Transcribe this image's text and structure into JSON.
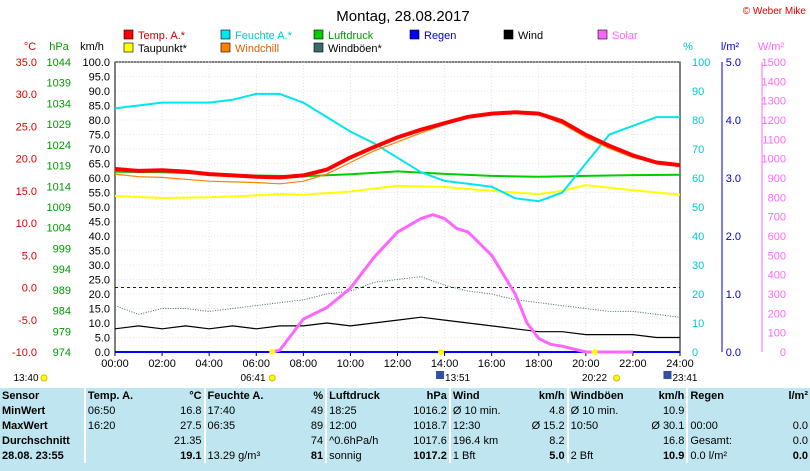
{
  "header": {
    "title": "Montag, 28.08.2017",
    "credit": "© Weber Mike"
  },
  "legend": [
    {
      "label": "Temp. A.*",
      "color": "#ff0000"
    },
    {
      "label": "Feuchte A.*",
      "color": "#00e5ee"
    },
    {
      "label": "Luftdruck",
      "color": "#00cc00"
    },
    {
      "label": "Regen",
      "color": "#0000ff"
    },
    {
      "label": "Wind",
      "color": "#000000"
    },
    {
      "label": "Solar",
      "color": "#ff66ff"
    },
    {
      "label": "Taupunkt*",
      "color": "#ffff00"
    },
    {
      "label": "Windchill",
      "color": "#ff8000"
    },
    {
      "label": "Windböen*",
      "color": "#3a6a6a"
    }
  ],
  "axis_units": {
    "temp": "°C",
    "pressure": "hPa",
    "wind": "km/h",
    "humidity": "%",
    "rain": "l/m²",
    "solar": "W/m²"
  },
  "sun_events": {
    "sunrise_left": "13:40",
    "sunrise": "06:41",
    "noon": "13:51",
    "sunset": "20:22",
    "moon": "23:41"
  },
  "chart_data": {
    "type": "line",
    "title": "Montag, 28.08.2017",
    "x_ticks": [
      "00:00",
      "02:00",
      "04:00",
      "06:00",
      "08:00",
      "10:00",
      "12:00",
      "14:00",
      "16:00",
      "18:00",
      "20:00",
      "22:00",
      "24:00"
    ],
    "axes": {
      "temp": {
        "range": [
          -10,
          35
        ],
        "ticks": [
          "35.0",
          "30.0",
          "25.0",
          "20.0",
          "15.0",
          "10.0",
          "5.0",
          "0.0",
          "-5.0",
          "-10.0"
        ]
      },
      "pressure": {
        "range": [
          974,
          1044
        ],
        "ticks": [
          "1044",
          "1039",
          "1034",
          "1029",
          "1024",
          "1019",
          "1014",
          "1009",
          "1004",
          "999",
          "994",
          "989",
          "984",
          "979",
          "974"
        ]
      },
      "wind": {
        "range": [
          0,
          100
        ],
        "ticks": [
          "100.0",
          "95.0",
          "90.0",
          "85.0",
          "80.0",
          "75.0",
          "70.0",
          "65.0",
          "60.0",
          "55.0",
          "50.0",
          "45.0",
          "40.0",
          "35.0",
          "30.0",
          "25.0",
          "20.0",
          "15.0",
          "10.0",
          "5.0",
          "0.0"
        ]
      },
      "humidity": {
        "range": [
          0,
          100
        ],
        "ticks": [
          "100",
          "90",
          "80",
          "70",
          "60",
          "50",
          "40",
          "30",
          "20",
          "10",
          "0"
        ]
      },
      "rain": {
        "range": [
          0,
          5
        ],
        "ticks": [
          "5.0",
          "4.0",
          "3.0",
          "2.0",
          "1.0",
          "0.0"
        ]
      },
      "solar": {
        "range": [
          0,
          1500
        ],
        "ticks": [
          "1500",
          "1400",
          "1300",
          "1200",
          "1100",
          "1000",
          "900",
          "800",
          "700",
          "600",
          "500",
          "400",
          "300",
          "200",
          "100",
          "0"
        ]
      }
    },
    "series": [
      {
        "name": "Temp. A.*",
        "axis": "temp",
        "color": "#ff0000",
        "x": [
          0,
          1,
          2,
          3,
          4,
          5,
          6,
          7,
          8,
          9,
          10,
          11,
          12,
          13,
          14,
          15,
          16,
          17,
          18,
          19,
          20,
          21,
          22,
          23,
          24
        ],
        "y": [
          18.4,
          18.1,
          18.2,
          18.0,
          17.6,
          17.4,
          17.2,
          17.1,
          17.4,
          18.3,
          20.2,
          21.8,
          23.3,
          24.5,
          25.5,
          26.5,
          27.0,
          27.2,
          27.0,
          25.8,
          23.7,
          22.0,
          20.5,
          19.4,
          19.0
        ]
      },
      {
        "name": "Windchill",
        "axis": "temp",
        "color": "#ff8000",
        "x": [
          0,
          1,
          2,
          3,
          4,
          5,
          6,
          7,
          8,
          9,
          10,
          11,
          12,
          13,
          14,
          15,
          16,
          17,
          18,
          19,
          20,
          21,
          22,
          23,
          24
        ],
        "y": [
          17.6,
          17.2,
          17.1,
          16.8,
          16.5,
          16.4,
          16.3,
          16.1,
          16.5,
          17.6,
          19.4,
          21.2,
          22.6,
          24.0,
          25.3,
          26.4,
          27.0,
          27.2,
          26.9,
          25.4,
          23.3,
          21.6,
          20.2,
          19.3,
          19.0
        ]
      },
      {
        "name": "Feuchte A.*",
        "axis": "humidity",
        "color": "#00e5ee",
        "x": [
          0,
          1,
          2,
          3,
          4,
          5,
          6,
          7,
          8,
          9,
          10,
          11,
          12,
          13,
          14,
          15,
          16,
          17,
          18,
          19,
          20,
          21,
          22,
          23,
          24
        ],
        "y": [
          84,
          85,
          86,
          86,
          86,
          87,
          89,
          89,
          86,
          81,
          76,
          72,
          67,
          62,
          59,
          58,
          57,
          53,
          52,
          55,
          65,
          75,
          78,
          81,
          81
        ]
      },
      {
        "name": "Luftdruck",
        "axis": "pressure",
        "color": "#00cc00",
        "x": [
          0,
          2,
          4,
          6,
          8,
          10,
          12,
          14,
          16,
          18,
          20,
          22,
          24
        ],
        "y": [
          1017.5,
          1017.4,
          1017.0,
          1016.6,
          1016.4,
          1016.9,
          1017.6,
          1017.0,
          1016.5,
          1016.3,
          1016.5,
          1016.7,
          1016.8
        ]
      },
      {
        "name": "Taupunkt*",
        "axis": "temp",
        "color": "#ffff00",
        "x": [
          0,
          2,
          4,
          6,
          7,
          8,
          10,
          12,
          14,
          16,
          18,
          19,
          20,
          22,
          24
        ],
        "y": [
          14.2,
          13.9,
          14.0,
          14.3,
          14.5,
          14.4,
          14.9,
          15.8,
          15.6,
          15.0,
          14.5,
          15.0,
          15.9,
          15.1,
          14.4
        ]
      },
      {
        "name": "Wind",
        "axis": "wind",
        "color": "#000000",
        "x": [
          0,
          1,
          2,
          3,
          4,
          5,
          6,
          7,
          8,
          9,
          10,
          11,
          12,
          13,
          14,
          15,
          16,
          17,
          18,
          19,
          20,
          21,
          22,
          23,
          24
        ],
        "y": [
          8,
          9,
          8,
          9,
          8,
          9,
          8,
          9,
          9,
          10,
          9,
          10,
          11,
          12,
          11,
          10,
          9,
          8,
          7,
          7,
          6,
          6,
          6,
          5,
          5
        ]
      },
      {
        "name": "Windböen*",
        "axis": "wind",
        "color": "#3a6a6a",
        "x": [
          0,
          1,
          2,
          3,
          4,
          5,
          6,
          7,
          8,
          9,
          10,
          11,
          12,
          13,
          14,
          15,
          16,
          17,
          18,
          19,
          20,
          21,
          22,
          23,
          24
        ],
        "y": [
          16,
          13,
          15,
          15,
          14,
          15,
          16,
          17,
          18,
          20,
          21,
          24,
          25,
          26,
          23,
          21,
          20,
          18,
          17,
          16,
          15,
          14,
          14,
          13,
          12
        ]
      },
      {
        "name": "Solar",
        "axis": "solar",
        "color": "#ff66ff",
        "x": [
          6.7,
          7,
          8,
          9,
          10,
          11,
          12,
          13,
          13.5,
          14,
          14.5,
          15,
          16,
          17,
          17.5,
          18,
          18.5,
          19,
          20,
          21,
          22
        ],
        "y": [
          0,
          10,
          170,
          230,
          330,
          490,
          620,
          690,
          710,
          690,
          640,
          620,
          500,
          300,
          150,
          70,
          40,
          30,
          0,
          0,
          0
        ]
      },
      {
        "name": "Regen",
        "axis": "rain",
        "color": "#0000ff",
        "x": [
          0,
          24
        ],
        "y": [
          0,
          0
        ]
      }
    ]
  },
  "stats": {
    "header": [
      "Sensor",
      "Temp. A.",
      "°C",
      "Feuchte A.",
      "%",
      "Luftdruck",
      "hPa",
      "Wind",
      "km/h",
      "Windböen",
      "km/h",
      "Regen",
      "l/m²"
    ],
    "rows": [
      [
        "MinWert",
        "06:50",
        "16.8",
        "17:40",
        "49",
        "18:25",
        "1016.2",
        "Ø 10 min.",
        "4.8",
        "Ø 10 min.",
        "10.9",
        "",
        ""
      ],
      [
        "MaxWert",
        "16:20",
        "27.5",
        "06:35",
        "89",
        "12:00",
        "1018.7",
        "12:30",
        "Ø 15.2",
        "10:50",
        "Ø 30.1",
        "00:00",
        "0.0"
      ],
      [
        "Durchschnitt",
        "",
        "21.35",
        "",
        "74",
        "^0.6hPa/h",
        "1017.6",
        "196.4 km",
        "8.2",
        "",
        "16.8",
        "Gesamt:",
        "0.0"
      ],
      [
        "28.08. 23:55",
        "",
        "19.1",
        "13.29 g/m³",
        "81",
        "sonnig",
        "1017.2",
        "1 Bft",
        "5.0",
        "2 Bft",
        "10.9",
        "0.0 l/m²",
        "0.0"
      ]
    ]
  }
}
